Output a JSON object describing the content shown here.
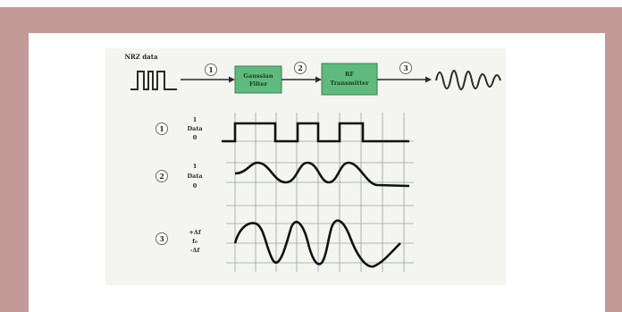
{
  "colors": {
    "outer_background": "#c49a98",
    "panel": "#ffffff",
    "figure_background": "#f4f5f1",
    "filter_box": "#5fba7d",
    "grid": "#9aa0a6",
    "signal": "#111111"
  },
  "top_row": {
    "input_label": "NRZ data",
    "marker_1": "1",
    "marker_2": "2",
    "marker_3": "3",
    "filter_line1": "Gaussian",
    "filter_line2": "Filter",
    "transmitter_line1": "RF",
    "transmitter_line2": "Transmitter"
  },
  "plots": [
    {
      "marker": "1",
      "top_label": "1",
      "mid_label": "Data",
      "bottom_label": "0"
    },
    {
      "marker": "2",
      "top_label": "1",
      "mid_label": "Data",
      "bottom_label": "0"
    },
    {
      "marker": "3",
      "top_label": "+Δf",
      "mid_label": "f₀",
      "bottom_label": "-Δf"
    }
  ]
}
